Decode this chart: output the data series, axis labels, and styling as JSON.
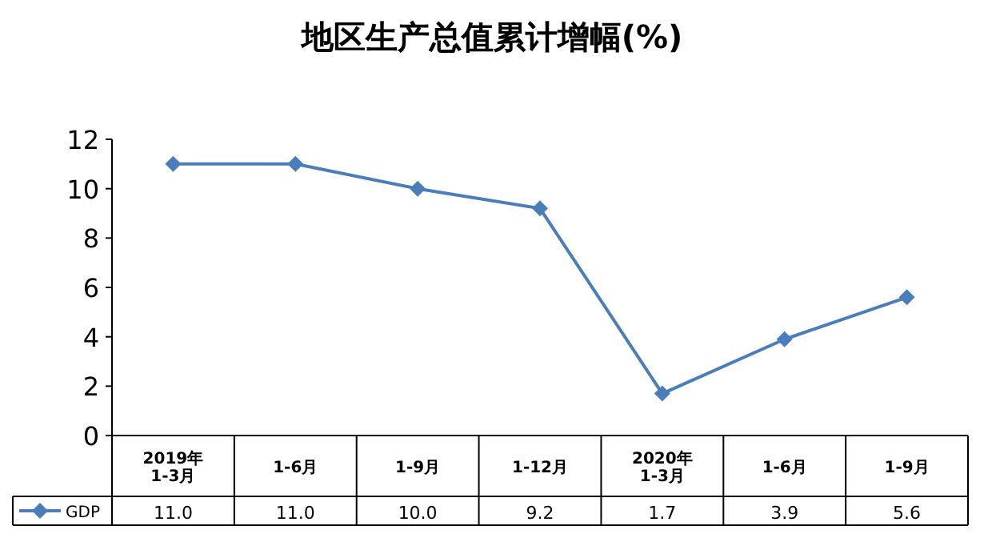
{
  "chart_data": {
    "type": "line",
    "title": "地区生产总值累计增幅(%)",
    "categories": [
      "2019年\n1-3月",
      "1-6月",
      "1-9月",
      "1-12月",
      "2020年\n1-3月",
      "1-6月",
      "1-9月"
    ],
    "series": [
      {
        "name": "GDP",
        "color": "#4a7ebb",
        "values": [
          11.0,
          11.0,
          10.0,
          9.2,
          1.7,
          3.9,
          5.6
        ],
        "value_labels": [
          "11.0",
          "11.0",
          "10.0",
          "9.2",
          "1.7",
          "3.9",
          "5.6"
        ]
      }
    ],
    "ylim": [
      0,
      12
    ],
    "yticks": [
      0,
      2,
      4,
      6,
      8,
      10,
      12
    ],
    "marker": "diamond",
    "line_style": "solid",
    "grid": false,
    "legend": "bottom"
  }
}
